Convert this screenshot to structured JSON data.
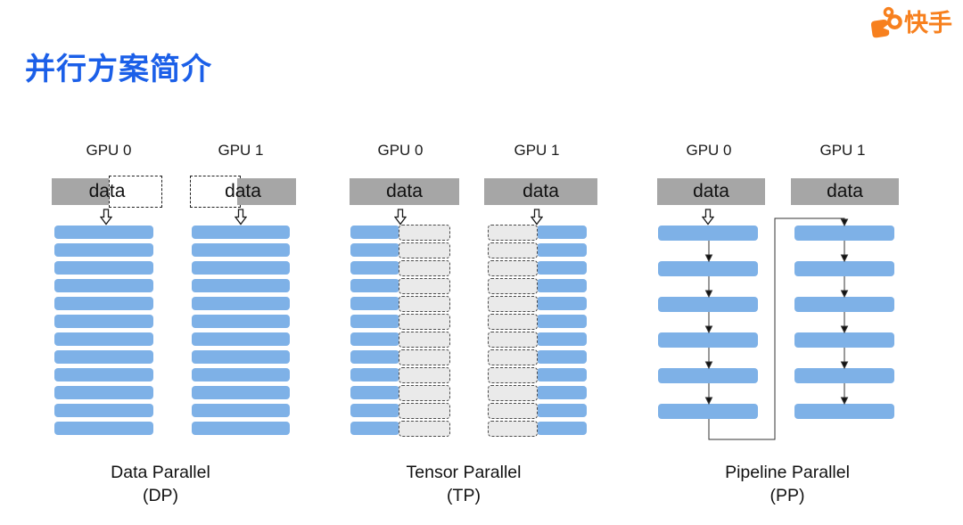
{
  "brand": {
    "name": "快手"
  },
  "title": "并行方案简介",
  "sections": [
    {
      "label_line1": "Data Parallel",
      "label_line2": "(DP)",
      "columns": [
        {
          "gpu_label": "GPU 0",
          "data_label": "data",
          "data_box": "half-solid-left-half-dashed-right",
          "bars": 12,
          "bar_style": "full"
        },
        {
          "gpu_label": "GPU 1",
          "data_label": "data",
          "data_box": "half-dashed-left-half-solid-right",
          "bars": 12,
          "bar_style": "full"
        }
      ]
    },
    {
      "label_line1": "Tensor Parallel",
      "label_line2": "(TP)",
      "columns": [
        {
          "gpu_label": "GPU 0",
          "data_label": "data",
          "data_box": "solid",
          "bars": 12,
          "bar_style": "split-left-blue"
        },
        {
          "gpu_label": "GPU 1",
          "data_label": "data",
          "data_box": "solid",
          "bars": 12,
          "bar_style": "split-right-blue"
        }
      ]
    },
    {
      "label_line1": "Pipeline Parallel",
      "label_line2": "(PP)",
      "columns": [
        {
          "gpu_label": "GPU 0",
          "data_label": "data",
          "data_box": "solid",
          "bars": 6,
          "bar_style": "full-spaced"
        },
        {
          "gpu_label": "GPU 1",
          "data_label": "data",
          "data_box": "solid",
          "bars": 6,
          "bar_style": "full-spaced"
        }
      ]
    }
  ],
  "colors": {
    "bar_blue": "#7EB1E7",
    "data_gray": "#A6A6A6",
    "title_blue": "#1B5FE8",
    "brand_orange": "#F7801E"
  }
}
